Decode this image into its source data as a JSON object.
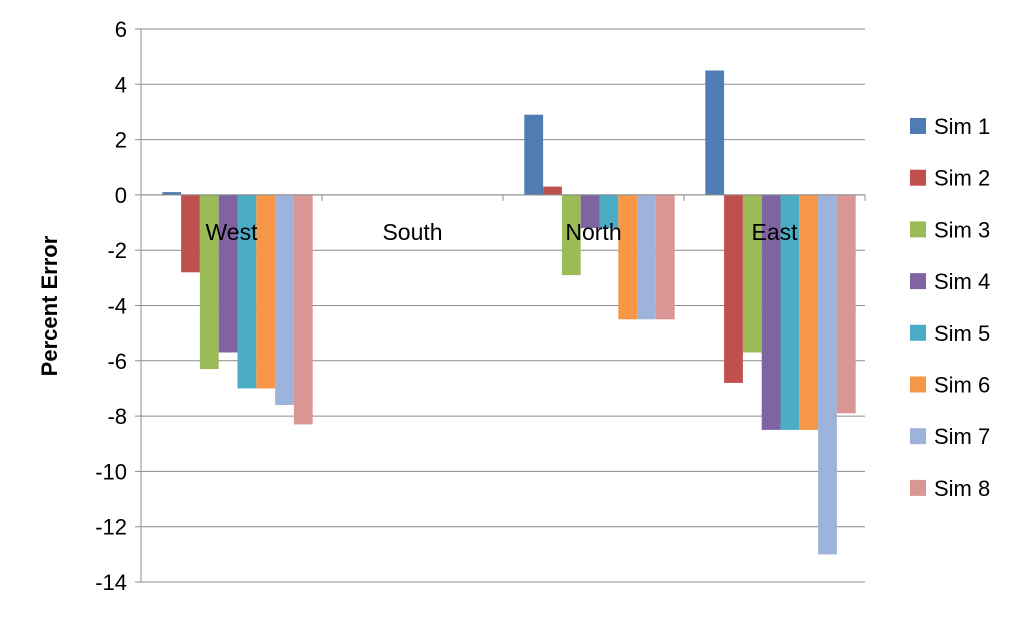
{
  "chart_data": {
    "type": "bar",
    "title": "",
    "xlabel": "",
    "ylabel": "Percent Error",
    "ylim": [
      -14,
      6
    ],
    "yticks": [
      6,
      4,
      2,
      0,
      -2,
      -4,
      -6,
      -8,
      -10,
      -12,
      -14
    ],
    "ytick_labels": [
      "6",
      "4",
      "2",
      "0",
      "-2",
      "-4",
      "-6",
      "-8",
      "-10",
      "-12",
      "-14"
    ],
    "grid": "horizontal",
    "legend_position": "right",
    "categories": [
      "West",
      "South",
      "North",
      "East"
    ],
    "series": [
      {
        "name": "Sim 1",
        "color": "#4F7CB3",
        "values": [
          0.1,
          0,
          2.9,
          4.5
        ]
      },
      {
        "name": "Sim 2",
        "color": "#C0504D",
        "values": [
          -2.8,
          0,
          0.3,
          -6.8
        ]
      },
      {
        "name": "Sim 3",
        "color": "#9BBB59",
        "values": [
          -6.3,
          0,
          -2.9,
          -5.7
        ]
      },
      {
        "name": "Sim 4",
        "color": "#8064A2",
        "values": [
          -5.7,
          0,
          -1.2,
          -8.5
        ]
      },
      {
        "name": "Sim 5",
        "color": "#4BACC6",
        "values": [
          -7.0,
          0,
          -1.2,
          -8.5
        ]
      },
      {
        "name": "Sim 6",
        "color": "#F79646",
        "values": [
          -7.0,
          0,
          -4.5,
          -8.5
        ]
      },
      {
        "name": "Sim 7",
        "color": "#9EB3DB",
        "values": [
          -7.6,
          0,
          -4.5,
          -13.0
        ]
      },
      {
        "name": "Sim 8",
        "color": "#DA9694",
        "values": [
          -8.3,
          0,
          -4.5,
          -7.9
        ]
      }
    ]
  }
}
